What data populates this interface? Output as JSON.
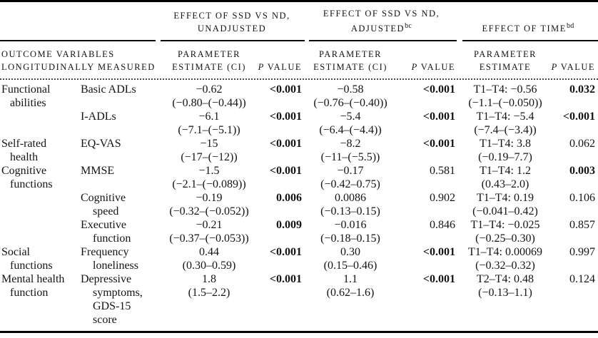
{
  "header": {
    "stub": [
      "OUTCOME VARIABLES",
      "LONGITUDINALLY MEASURED"
    ],
    "group1": {
      "line1": "EFFECT OF SSD VS ND,",
      "line2": "UNADJUSTED",
      "sup": ""
    },
    "group2": {
      "line1": "EFFECT OF SSD VS ND,",
      "line2": "ADJUSTED",
      "sup": "bc"
    },
    "group3": {
      "line1": "EFFECT OF TIME",
      "sup": "bd"
    },
    "sub": {
      "param": "PARAMETER",
      "estimate_ci": "ESTIMATE (CI)",
      "estimate": "ESTIMATE",
      "p": "P",
      "value": "VALUE"
    }
  },
  "rows": [
    {
      "category": [
        "Functional",
        "abilities"
      ],
      "measure": [
        "Basic ADLs"
      ],
      "unadjusted": {
        "estimate": "−0.62",
        "ci": "(−0.80–(−0.44))",
        "p": "<0.001",
        "p_bold": true
      },
      "adjusted": {
        "estimate": "−0.58",
        "ci": "(−0.76–(−0.40))",
        "p": "<0.001",
        "p_bold": true
      },
      "time": {
        "estimate": "T1–T4: −0.56",
        "ci": "(−1.1–(−0.050))",
        "p": "0.032",
        "p_bold": true
      }
    },
    {
      "category": [],
      "measure": [
        "I-ADLs"
      ],
      "unadjusted": {
        "estimate": "−6.1",
        "ci": "(−7.1–(−5.1))",
        "p": "<0.001",
        "p_bold": true
      },
      "adjusted": {
        "estimate": "−5.4",
        "ci": "(−6.4–(−4.4))",
        "p": "<0.001",
        "p_bold": true
      },
      "time": {
        "estimate": "T1–T4: −5.4",
        "ci": "(−7.4–(−3.4))",
        "p": "<0.001",
        "p_bold": true
      }
    },
    {
      "category": [
        "Self-rated",
        "health"
      ],
      "measure": [
        "EQ-VAS"
      ],
      "unadjusted": {
        "estimate": "−15",
        "ci": "(−17–(−12))",
        "p": "<0.001",
        "p_bold": true
      },
      "adjusted": {
        "estimate": "−8.2",
        "ci": "(−11–(−5.5))",
        "p": "<0.001",
        "p_bold": true
      },
      "time": {
        "estimate": "T1–T4: 3.8",
        "ci": "(−0.19–7.7)",
        "p": "0.062",
        "p_bold": false
      }
    },
    {
      "category": [
        "Cognitive",
        "functions"
      ],
      "measure": [
        "MMSE"
      ],
      "unadjusted": {
        "estimate": "−1.5",
        "ci": "(−2.1–(−0.089))",
        "p": "<0.001",
        "p_bold": true
      },
      "adjusted": {
        "estimate": "−0.17",
        "ci": "(−0.42–0.75)",
        "p": "0.581",
        "p_bold": false
      },
      "time": {
        "estimate": "T1–T4: 1.2",
        "ci": "(0.43–2.0)",
        "p": "0.003",
        "p_bold": true
      }
    },
    {
      "category": [],
      "measure": [
        "Cognitive",
        "speed"
      ],
      "unadjusted": {
        "estimate": "−0.19",
        "ci": "(−0.32–(−0.052))",
        "p": "0.006",
        "p_bold": true
      },
      "adjusted": {
        "estimate": "0.0086",
        "ci": "(−0.13–0.15)",
        "p": "0.902",
        "p_bold": false
      },
      "time": {
        "estimate": "T1–T4: 0.19",
        "ci": "(−0.041–0.42)",
        "p": "0.106",
        "p_bold": false
      }
    },
    {
      "category": [],
      "measure": [
        "Executive",
        "function"
      ],
      "unadjusted": {
        "estimate": "−0.21",
        "ci": "(−0.37–(−0.053))",
        "p": "0.009",
        "p_bold": true
      },
      "adjusted": {
        "estimate": "−0.016",
        "ci": "(−0.18–0.15)",
        "p": "0.846",
        "p_bold": false
      },
      "time": {
        "estimate": "T1–T4: −0.025",
        "ci": "(−0.25–0.30)",
        "p": "0.857",
        "p_bold": false
      }
    },
    {
      "category": [
        "Social",
        "functions"
      ],
      "measure": [
        "Frequency",
        "loneliness"
      ],
      "unadjusted": {
        "estimate": "0.44",
        "ci": "(0.30–0.59)",
        "p": "<0.001",
        "p_bold": true
      },
      "adjusted": {
        "estimate": "0.30",
        "ci": "(0.15–0.46)",
        "p": "<0.001",
        "p_bold": true
      },
      "time": {
        "estimate": "T1–T4: 0.00069",
        "ci": "(−0.32–0.32)",
        "p": "0.997",
        "p_bold": false
      }
    },
    {
      "category": [
        "Mental health",
        "function"
      ],
      "measure": [
        "Depressive",
        "symptoms,",
        "GDS-15",
        "score"
      ],
      "unadjusted": {
        "estimate": "1.8",
        "ci": "(1.5–2.2)",
        "p": "<0.001",
        "p_bold": true
      },
      "adjusted": {
        "estimate": "1.1",
        "ci": "(0.62–1.6)",
        "p": "<0.001",
        "p_bold": true
      },
      "time": {
        "estimate": "T2–T4: 0.48",
        "ci": "(−0.13–1.1)",
        "p": "0.124",
        "p_bold": false
      }
    }
  ]
}
